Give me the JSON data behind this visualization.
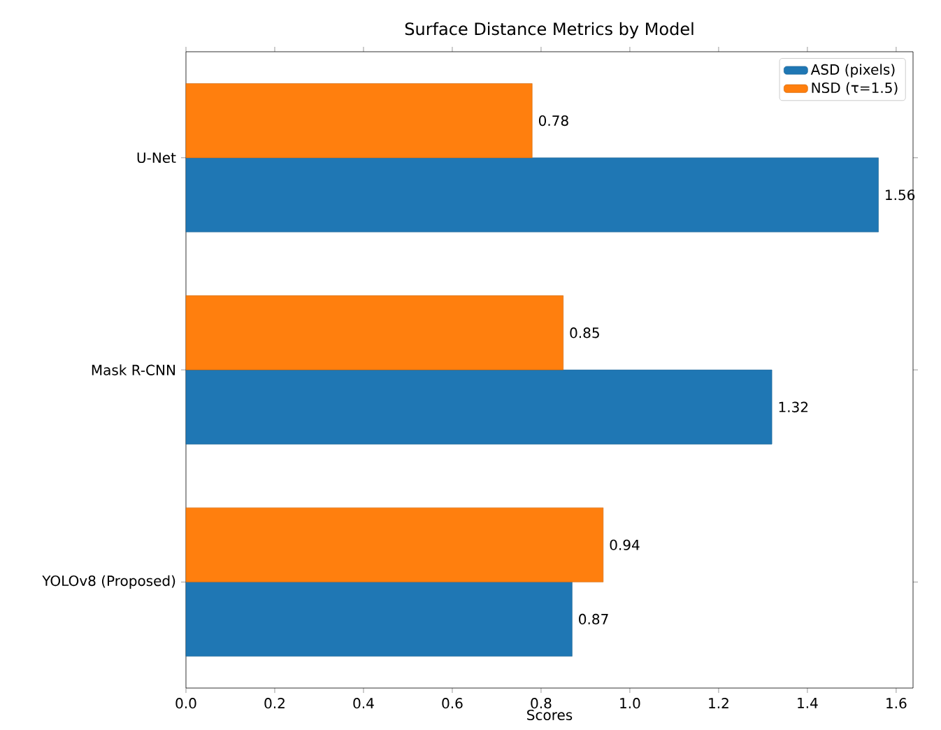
{
  "chart_data": {
    "type": "bar",
    "orientation": "horizontal",
    "title": "Surface Distance Metrics by Model",
    "xlabel": "Scores",
    "categories": [
      "U-Net",
      "Mask R-CNN",
      "YOLOv8 (Proposed)"
    ],
    "series": [
      {
        "name": "ASD (pixels)",
        "color": "#1f77b4",
        "values": [
          1.56,
          1.32,
          0.87
        ]
      },
      {
        "name": "NSD (τ=1.5)",
        "color": "#ff7f0e",
        "values": [
          0.78,
          0.85,
          0.94
        ]
      }
    ],
    "xlim": [
      0,
      1.638
    ],
    "xticks": [
      {
        "value": 0,
        "label": "0.0"
      },
      0.2,
      0.4,
      0.6,
      0.8,
      {
        "value": 1,
        "label": "1.0"
      },
      1.2,
      1.4,
      1.6
    ],
    "data_labels": true,
    "legend": "top right",
    "grid": false
  }
}
